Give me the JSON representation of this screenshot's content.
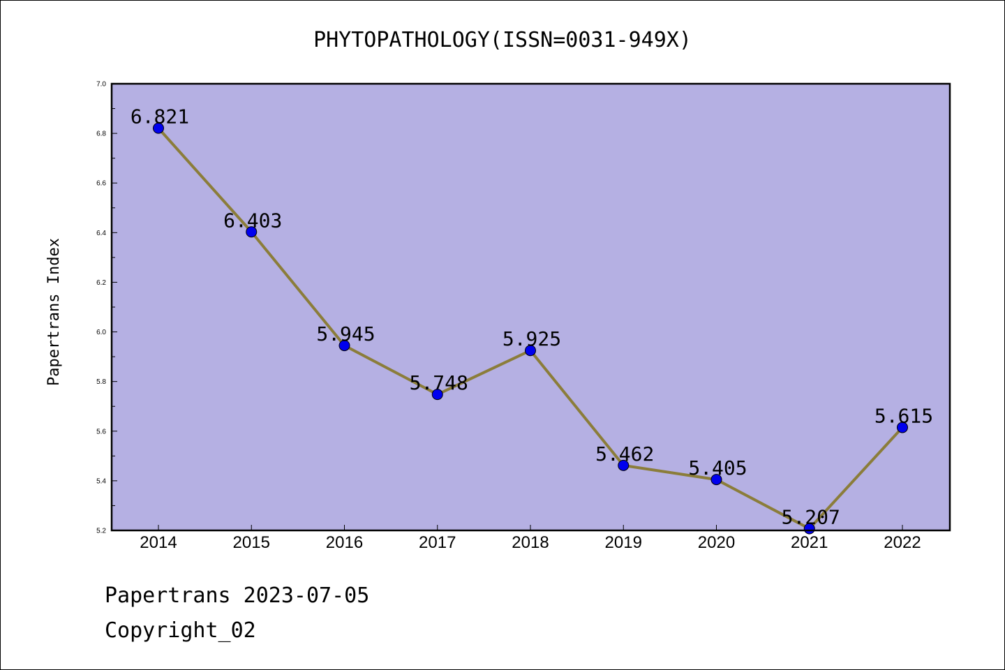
{
  "chart_data": {
    "type": "line",
    "title": "PHYTOPATHOLOGY(ISSN=0031-949X)",
    "xlabel": "",
    "ylabel": "Papertrans Index",
    "categories": [
      "2014",
      "2015",
      "2016",
      "2017",
      "2018",
      "2019",
      "2020",
      "2021",
      "2022"
    ],
    "values": [
      6.821,
      6.403,
      5.945,
      5.748,
      5.925,
      5.462,
      5.405,
      5.207,
      5.615
    ],
    "data_labels": [
      "6.821",
      "6.403",
      "5.945",
      "5.748",
      "5.925",
      "5.462",
      "5.405",
      "5.207",
      "5.615"
    ],
    "ylim": [
      5.2,
      7.0
    ],
    "yticks": [
      5.2,
      5.4,
      5.6,
      5.8,
      6.0,
      6.2,
      6.4,
      6.6,
      6.8,
      7.0
    ],
    "ytick_labels": [
      "5.2",
      "5.4",
      "5.6",
      "5.8",
      "6.0",
      "6.2",
      "6.4",
      "6.6",
      "6.8",
      "7.0"
    ],
    "grid": false,
    "colors": {
      "plot_background": "#b5b0e3",
      "line": "#8b7d3a",
      "marker": "#0000ee"
    }
  },
  "footer": {
    "line1": "Papertrans 2023-07-05",
    "line2": "Copyright_02"
  }
}
